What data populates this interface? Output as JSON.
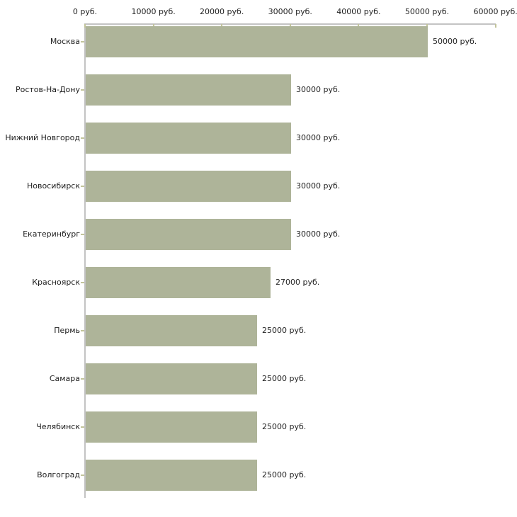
{
  "chart_data": {
    "type": "bar",
    "orientation": "horizontal",
    "unit": "руб.",
    "categories": [
      "Москва",
      "Ростов-На-Дону",
      "Нижний Новгород",
      "Новосибирск",
      "Екатеринбург",
      "Красноярск",
      "Пермь",
      "Самара",
      "Челябинск",
      "Волгоград"
    ],
    "values": [
      50000,
      30000,
      30000,
      30000,
      30000,
      27000,
      25000,
      25000,
      25000,
      25000
    ],
    "value_labels": [
      "50000 руб.",
      "30000 руб.",
      "30000 руб.",
      "30000 руб.",
      "30000 руб.",
      "27000 руб.",
      "25000 руб.",
      "25000 руб.",
      "25000 руб.",
      "25000 руб."
    ],
    "x_ticks": [
      0,
      10000,
      20000,
      30000,
      40000,
      50000,
      60000
    ],
    "x_tick_labels": [
      "0 руб.",
      "10000 руб.",
      "20000 руб.",
      "30000 руб.",
      "40000 руб.",
      "50000 руб.",
      "60000 руб."
    ],
    "xlim": [
      0,
      60000
    ],
    "title": "",
    "xlabel": "",
    "ylabel": "",
    "grid": false,
    "legend": null,
    "colors": {
      "bar": "#aeb499",
      "axis": "#c3c3c3",
      "tick": "#c2c49b",
      "text": "#1f1f1f",
      "background": "#ffffff"
    }
  }
}
